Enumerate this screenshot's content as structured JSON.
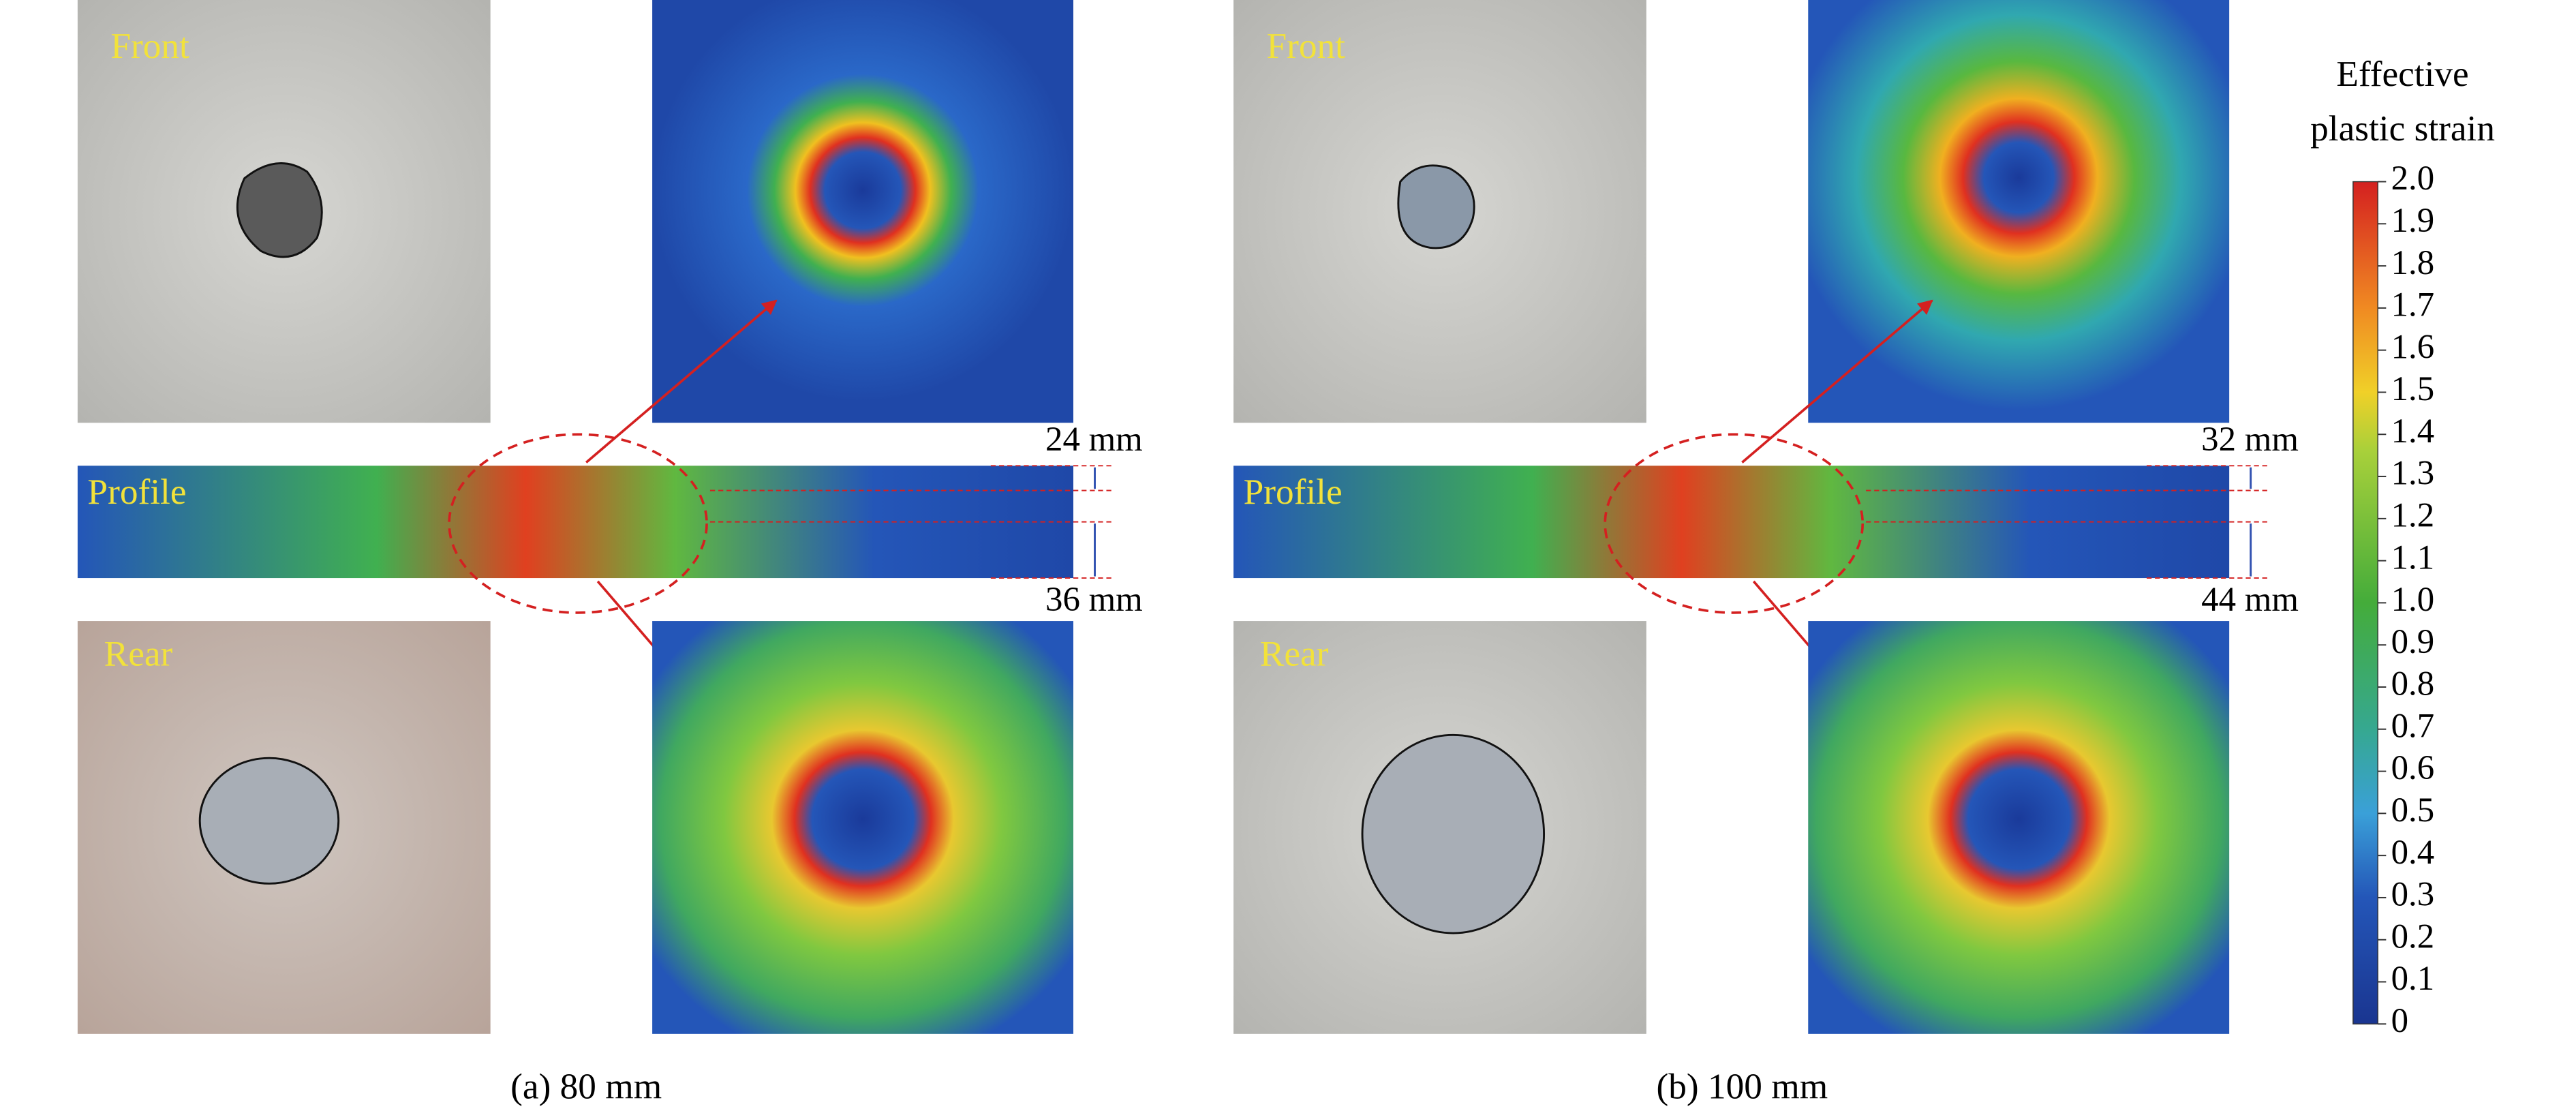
{
  "panels": [
    {
      "caption": "(a) 80 mm",
      "front_label": "Front",
      "profile_label": "Profile",
      "rear_label": "Rear",
      "top_thickness": "24 mm",
      "bottom_thickness": "36 mm"
    },
    {
      "caption": "(b) 100 mm",
      "front_label": "Front",
      "profile_label": "Profile",
      "rear_label": "Rear",
      "top_thickness": "32 mm",
      "bottom_thickness": "44 mm"
    }
  ],
  "colorbar": {
    "title_lines": [
      "Effective",
      "plastic strain"
    ],
    "lim": [
      0,
      2
    ],
    "ticks": [
      {
        "value": 2,
        "label": "2.0"
      },
      1.9,
      1.8,
      1.7,
      1.6,
      1.5,
      1.4,
      1.3,
      1.2,
      1.1,
      {
        "value": 1,
        "label": "1.0"
      },
      0.9,
      0.8,
      0.7,
      0.6,
      0.5,
      0.4,
      0.3,
      0.2,
      0.1,
      0
    ]
  }
}
